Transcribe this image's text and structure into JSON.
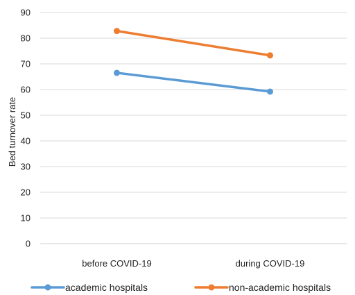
{
  "chart_data": {
    "type": "line",
    "title": "",
    "xlabel": "",
    "ylabel": "Bed turnover rate",
    "categories": [
      "before COVID-19",
      "during COVID-19"
    ],
    "ylim": [
      0,
      90
    ],
    "yticks": [
      0,
      10,
      20,
      30,
      40,
      50,
      60,
      70,
      80,
      90
    ],
    "grid": true,
    "legend_position": "bottom",
    "series": [
      {
        "name": "academic hospitals",
        "values": [
          66.5,
          59.2
        ],
        "color": "#5b9bd5"
      },
      {
        "name": "non-academic hospitals",
        "values": [
          82.8,
          73.3
        ],
        "color": "#ed7d31"
      }
    ]
  }
}
